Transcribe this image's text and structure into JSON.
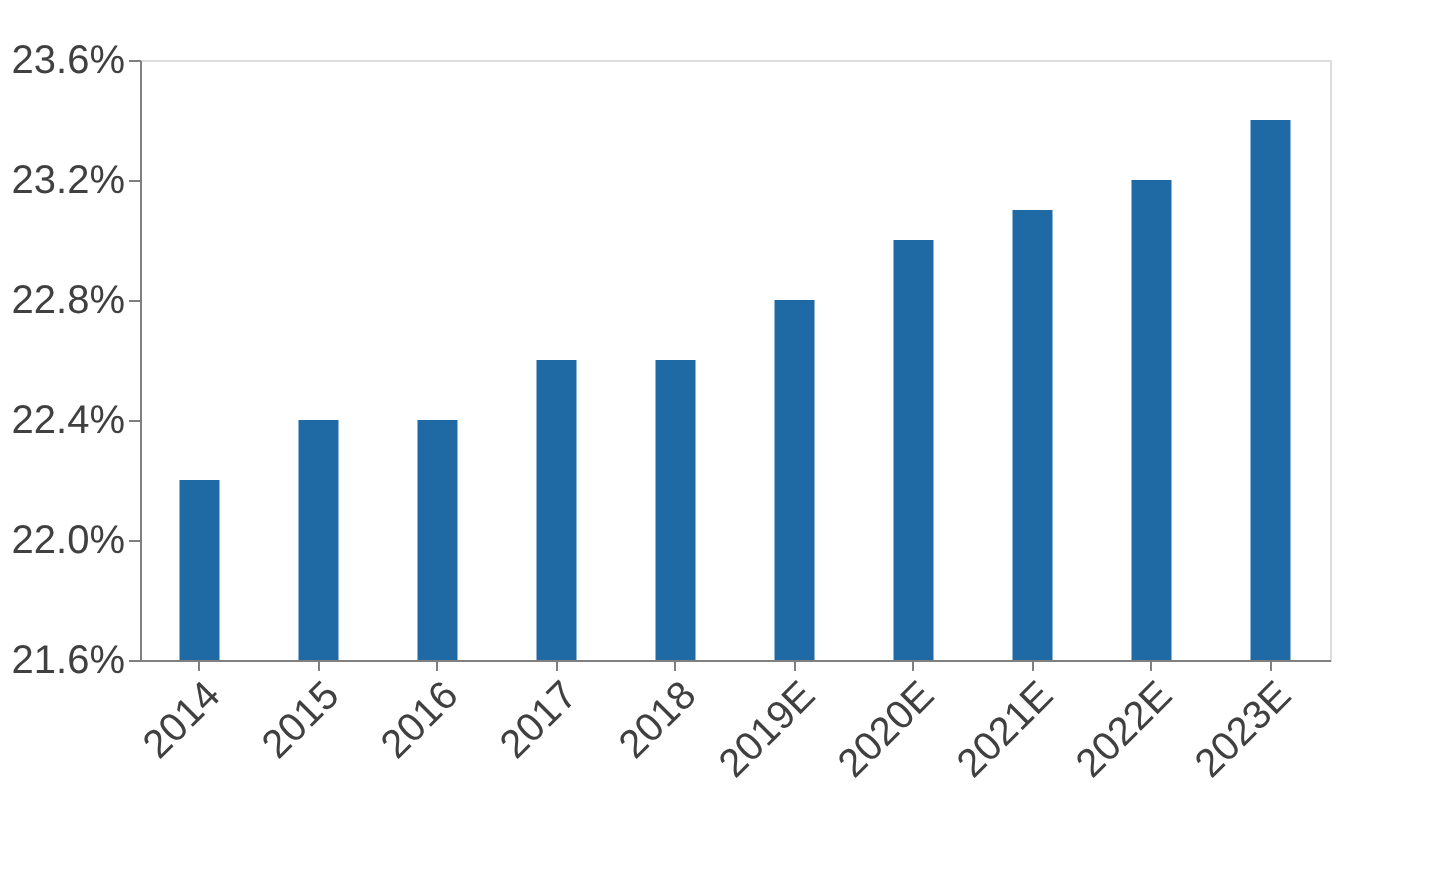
{
  "chart_data": {
    "type": "bar",
    "categories": [
      "2014",
      "2015",
      "2016",
      "2017",
      "2018",
      "2019E",
      "2020E",
      "2021E",
      "2022E",
      "2023E"
    ],
    "values": [
      22.2,
      22.4,
      22.4,
      22.6,
      22.6,
      22.8,
      23.0,
      23.1,
      23.2,
      23.4
    ],
    "color": "#1f6aa5",
    "ylim": [
      21.6,
      23.6
    ],
    "yticks": [
      {
        "value": 21.6,
        "label": "21.6%"
      },
      {
        "value": 22.0,
        "label": "22.0%"
      },
      {
        "value": 22.4,
        "label": "22.4%"
      },
      {
        "value": 22.8,
        "label": "22.8%"
      },
      {
        "value": 23.2,
        "label": "23.2%"
      },
      {
        "value": 23.6,
        "label": "23.6%"
      }
    ],
    "grid": false
  }
}
